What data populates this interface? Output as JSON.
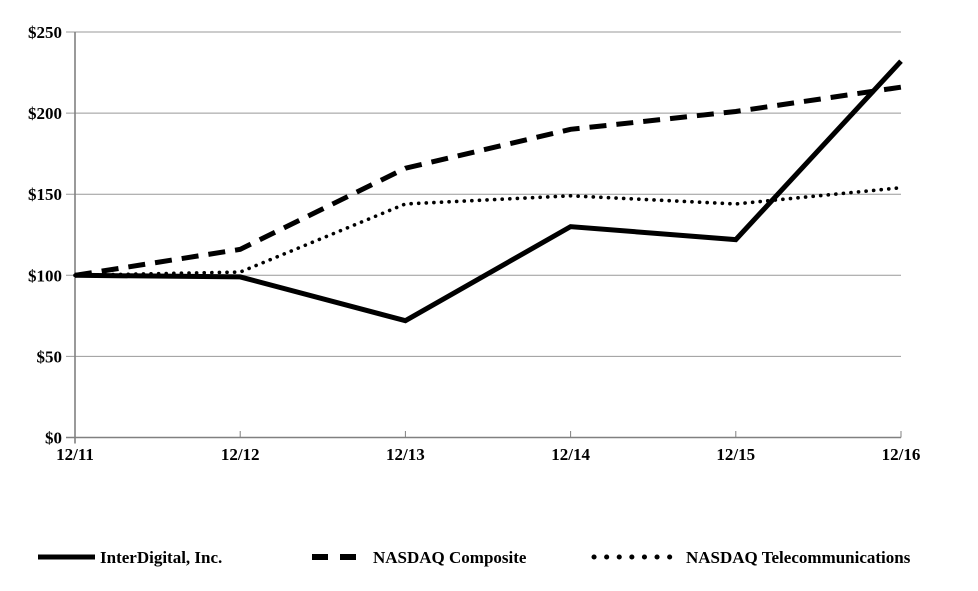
{
  "chart_data": {
    "type": "line",
    "categories": [
      "12/11",
      "12/12",
      "12/13",
      "12/14",
      "12/15",
      "12/16"
    ],
    "series": [
      {
        "name": "InterDigital, Inc.",
        "style": "solid",
        "values": [
          100,
          99,
          72,
          130,
          122,
          232
        ]
      },
      {
        "name": "NASDAQ Composite",
        "style": "dashed",
        "values": [
          100,
          116,
          166,
          190,
          201,
          216
        ]
      },
      {
        "name": "NASDAQ Telecommunications",
        "style": "dotted",
        "values": [
          100,
          102,
          144,
          149,
          144,
          154
        ]
      }
    ],
    "y_ticks": [
      {
        "label": "$0",
        "value": 0
      },
      {
        "label": "$50",
        "value": 50
      },
      {
        "label": "$100",
        "value": 100
      },
      {
        "label": "$150",
        "value": 150
      },
      {
        "label": "$200",
        "value": 200
      },
      {
        "label": "$250",
        "value": 250
      }
    ],
    "ylim": [
      0,
      250
    ],
    "xlabel": "",
    "ylabel": "",
    "grid": true,
    "legend_position": "bottom",
    "colors": {
      "series_line": "#000000",
      "grid_line": "#999999",
      "axis_line": "#808080",
      "text": "#000000",
      "background": "#ffffff"
    }
  }
}
